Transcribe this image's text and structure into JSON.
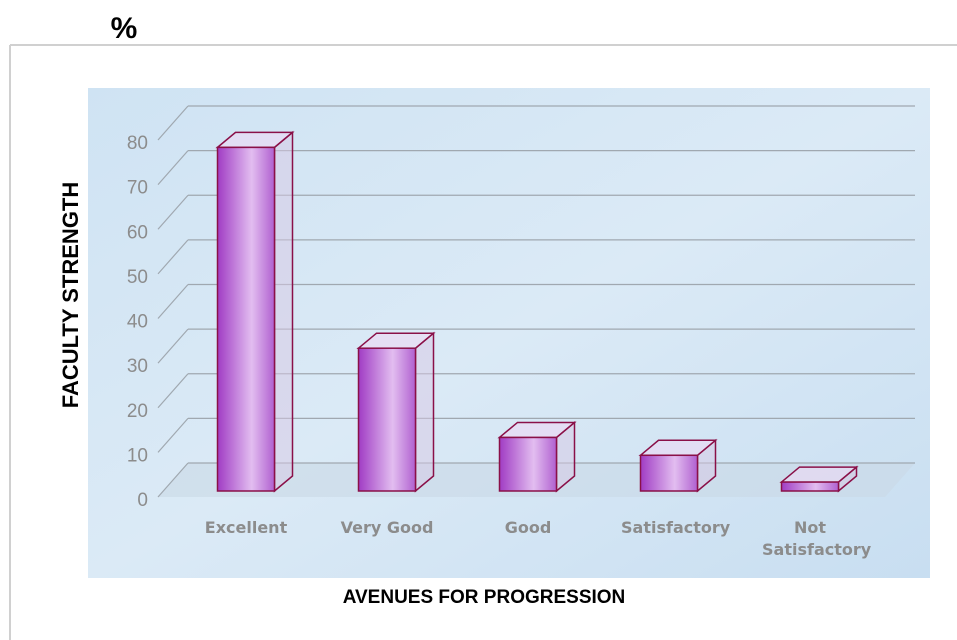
{
  "chart_data": {
    "type": "bar3d",
    "title": "%",
    "categories": [
      "Excellent",
      "Very Good",
      "Good",
      "Satisfactory",
      "Not Satisfactory"
    ],
    "values": [
      77,
      32,
      12,
      8,
      2
    ],
    "color": "#a848c8",
    "ylim": [
      0,
      80
    ],
    "yticks": [
      0,
      10,
      20,
      30,
      40,
      50,
      60,
      70,
      80
    ],
    "grid": true,
    "xlabel": "AVENUES FOR PROGRESSION",
    "ylabel": "FACULTY STRENGTH"
  }
}
